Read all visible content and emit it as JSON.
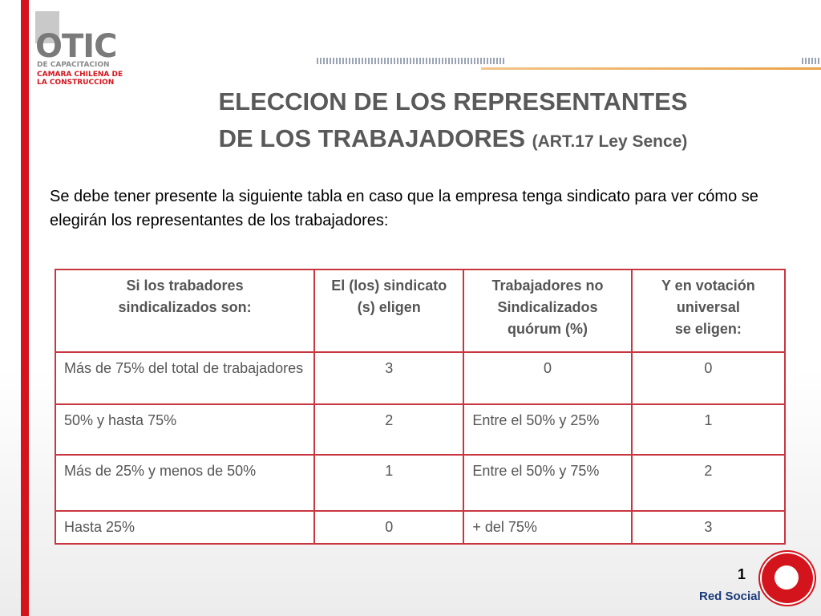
{
  "logo": {
    "name": "OTIC",
    "line1": "DE CAPACITACION",
    "line2": "CAMARA CHILENA DE\nLA CONSTRUCCION"
  },
  "title": {
    "line1": "ELECCION DE LOS REPRESENTANTES",
    "line2": "DE LOS TRABAJADORES",
    "note": "(ART.17 Ley Sence)"
  },
  "intro": "Se debe tener presente la siguiente tabla en caso que la empresa tenga sindicato para ver cómo se elegirán los representantes de los trabajadores:",
  "table": {
    "header": [
      "Si los trabadores\nsindicalizados son:",
      "El (los) sindicato\n(s) eligen",
      "Trabajadores no\nSindicalizados\nquórum (%)",
      "Y en votación\nuniversal\nse eligen:"
    ],
    "rows": [
      [
        "Más de 75% del total de trabajadores",
        3,
        "0",
        0
      ],
      [
        "50% y hasta 75%",
        2,
        "Entre el 50% y 25%",
        1
      ],
      [
        "Más de 25% y menos de 50%",
        1,
        "Entre el 50% y 75%",
        2
      ],
      [
        "Hasta 25%",
        0,
        "+ del 75%",
        3
      ]
    ]
  },
  "page_number": 1,
  "footer": "Red Social"
}
